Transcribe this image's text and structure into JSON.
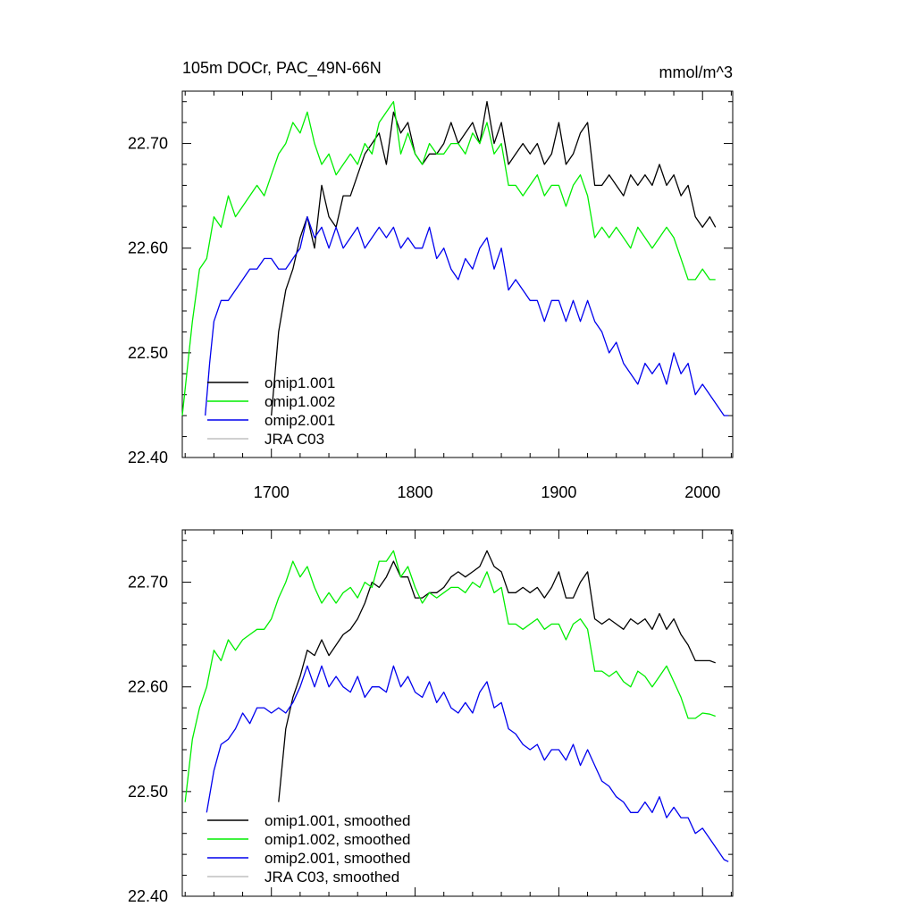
{
  "chart_data": [
    {
      "type": "line",
      "title": "105m DOCr, PAC_49N-66N",
      "units": "mmol/m^3",
      "xlim": [
        1638,
        2021
      ],
      "ylim": [
        22.4,
        22.75
      ],
      "x_ticks": [
        1700,
        1800,
        1900,
        2000
      ],
      "y_ticks": [
        "22.40",
        "22.50",
        "22.60",
        "22.70"
      ],
      "grid": false,
      "legend_position": "bottom-left",
      "series": [
        {
          "name": "omip1.001",
          "color": "#000000",
          "x": [
            1700,
            1705,
            1710,
            1715,
            1720,
            1725,
            1730,
            1735,
            1740,
            1745,
            1750,
            1755,
            1760,
            1765,
            1770,
            1775,
            1780,
            1785,
            1790,
            1795,
            1800,
            1805,
            1810,
            1815,
            1820,
            1825,
            1830,
            1835,
            1840,
            1845,
            1850,
            1855,
            1860,
            1865,
            1870,
            1875,
            1880,
            1885,
            1890,
            1895,
            1900,
            1905,
            1910,
            1915,
            1920,
            1925,
            1930,
            1935,
            1940,
            1945,
            1950,
            1955,
            1960,
            1965,
            1970,
            1975,
            1980,
            1985,
            1990,
            1995,
            2000,
            2005,
            2009
          ],
          "y": [
            22.44,
            22.52,
            22.56,
            22.58,
            22.61,
            22.63,
            22.6,
            22.66,
            22.63,
            22.62,
            22.65,
            22.65,
            22.67,
            22.69,
            22.7,
            22.71,
            22.68,
            22.73,
            22.71,
            22.72,
            22.69,
            22.68,
            22.69,
            22.69,
            22.7,
            22.72,
            22.7,
            22.71,
            22.72,
            22.7,
            22.74,
            22.7,
            22.72,
            22.68,
            22.69,
            22.7,
            22.69,
            22.7,
            22.68,
            22.69,
            22.72,
            22.68,
            22.69,
            22.71,
            22.72,
            22.66,
            22.66,
            22.67,
            22.66,
            22.65,
            22.67,
            22.66,
            22.67,
            22.66,
            22.68,
            22.66,
            22.67,
            22.65,
            22.66,
            22.63,
            22.62,
            22.63,
            22.62
          ]
        },
        {
          "name": "omip1.002",
          "color": "#00ee00",
          "x": [
            1638,
            1645,
            1650,
            1655,
            1660,
            1665,
            1670,
            1675,
            1680,
            1685,
            1690,
            1695,
            1700,
            1705,
            1710,
            1715,
            1720,
            1725,
            1730,
            1735,
            1740,
            1745,
            1750,
            1755,
            1760,
            1765,
            1770,
            1775,
            1780,
            1785,
            1790,
            1795,
            1800,
            1805,
            1810,
            1815,
            1820,
            1825,
            1830,
            1835,
            1840,
            1845,
            1850,
            1855,
            1860,
            1865,
            1870,
            1875,
            1880,
            1885,
            1890,
            1895,
            1900,
            1905,
            1910,
            1915,
            1920,
            1925,
            1930,
            1935,
            1940,
            1945,
            1950,
            1955,
            1960,
            1965,
            1970,
            1975,
            1980,
            1985,
            1990,
            1995,
            2000,
            2005,
            2009
          ],
          "y": [
            22.44,
            22.53,
            22.58,
            22.59,
            22.63,
            22.62,
            22.65,
            22.63,
            22.64,
            22.65,
            22.66,
            22.65,
            22.67,
            22.69,
            22.7,
            22.72,
            22.71,
            22.73,
            22.7,
            22.68,
            22.69,
            22.67,
            22.68,
            22.69,
            22.68,
            22.7,
            22.69,
            22.72,
            22.73,
            22.74,
            22.69,
            22.71,
            22.69,
            22.68,
            22.7,
            22.69,
            22.69,
            22.7,
            22.7,
            22.69,
            22.71,
            22.7,
            22.72,
            22.69,
            22.7,
            22.66,
            22.66,
            22.65,
            22.66,
            22.67,
            22.65,
            22.66,
            22.66,
            22.64,
            22.66,
            22.67,
            22.65,
            22.61,
            22.62,
            22.61,
            22.62,
            22.61,
            22.6,
            22.62,
            22.61,
            22.6,
            22.61,
            22.62,
            22.61,
            22.59,
            22.57,
            22.57,
            22.58,
            22.57,
            22.57
          ]
        },
        {
          "name": "omip2.001",
          "color": "#0000ee",
          "x": [
            1654,
            1657,
            1660,
            1665,
            1670,
            1675,
            1680,
            1685,
            1690,
            1695,
            1700,
            1705,
            1710,
            1715,
            1720,
            1725,
            1730,
            1735,
            1740,
            1745,
            1750,
            1755,
            1760,
            1765,
            1770,
            1775,
            1780,
            1785,
            1790,
            1795,
            1800,
            1805,
            1810,
            1815,
            1820,
            1825,
            1830,
            1835,
            1840,
            1845,
            1850,
            1855,
            1860,
            1865,
            1870,
            1875,
            1880,
            1885,
            1890,
            1895,
            1900,
            1905,
            1910,
            1915,
            1920,
            1925,
            1930,
            1935,
            1940,
            1945,
            1950,
            1955,
            1960,
            1965,
            1970,
            1975,
            1980,
            1985,
            1990,
            1995,
            2000,
            2005,
            2010,
            2015,
            2018
          ],
          "y": [
            22.44,
            22.49,
            22.53,
            22.55,
            22.55,
            22.56,
            22.57,
            22.58,
            22.58,
            22.59,
            22.59,
            22.58,
            22.58,
            22.59,
            22.6,
            22.63,
            22.61,
            22.62,
            22.6,
            22.62,
            22.6,
            22.61,
            22.62,
            22.6,
            22.61,
            22.62,
            22.61,
            22.62,
            22.6,
            22.61,
            22.6,
            22.6,
            22.62,
            22.59,
            22.6,
            22.58,
            22.57,
            22.59,
            22.58,
            22.6,
            22.61,
            22.58,
            22.6,
            22.56,
            22.57,
            22.56,
            22.55,
            22.55,
            22.53,
            22.55,
            22.55,
            22.53,
            22.55,
            22.53,
            22.55,
            22.53,
            22.52,
            22.5,
            22.51,
            22.49,
            22.48,
            22.47,
            22.49,
            22.48,
            22.49,
            22.47,
            22.5,
            22.48,
            22.49,
            22.46,
            22.47,
            22.46,
            22.45,
            22.44,
            22.44
          ]
        },
        {
          "name": "JRA C03",
          "color": "#c0c0c0",
          "x": [],
          "y": []
        }
      ]
    },
    {
      "type": "line",
      "title": "",
      "xlim": [
        1638,
        2021
      ],
      "ylim": [
        22.4,
        22.75
      ],
      "y_ticks": [
        "22.40",
        "22.50",
        "22.60",
        "22.70"
      ],
      "grid": false,
      "legend_position": "bottom-left",
      "series": [
        {
          "name": "omip1.001, smoothed",
          "color": "#000000",
          "x": [
            1705,
            1710,
            1715,
            1720,
            1725,
            1730,
            1735,
            1740,
            1745,
            1750,
            1755,
            1760,
            1765,
            1770,
            1775,
            1780,
            1785,
            1790,
            1795,
            1800,
            1805,
            1810,
            1815,
            1820,
            1825,
            1830,
            1835,
            1840,
            1845,
            1850,
            1855,
            1860,
            1865,
            1870,
            1875,
            1880,
            1885,
            1890,
            1895,
            1900,
            1905,
            1910,
            1915,
            1920,
            1925,
            1930,
            1935,
            1940,
            1945,
            1950,
            1955,
            1960,
            1965,
            1970,
            1975,
            1980,
            1985,
            1990,
            1995,
            2000,
            2005,
            2009
          ],
          "y": [
            22.49,
            22.56,
            22.59,
            22.61,
            22.635,
            22.63,
            22.645,
            22.63,
            22.64,
            22.65,
            22.655,
            22.665,
            22.68,
            22.7,
            22.695,
            22.705,
            22.72,
            22.705,
            22.705,
            22.685,
            22.685,
            22.69,
            22.69,
            22.695,
            22.705,
            22.71,
            22.705,
            22.71,
            22.715,
            22.73,
            22.715,
            22.71,
            22.69,
            22.69,
            22.695,
            22.69,
            22.695,
            22.685,
            22.695,
            22.71,
            22.685,
            22.685,
            22.7,
            22.71,
            22.665,
            22.66,
            22.665,
            22.66,
            22.655,
            22.665,
            22.66,
            22.665,
            22.655,
            22.67,
            22.655,
            22.665,
            22.65,
            22.64,
            22.625,
            22.625,
            22.625,
            22.623
          ]
        },
        {
          "name": "omip1.002, smoothed",
          "color": "#00ee00",
          "x": [
            1640,
            1645,
            1650,
            1655,
            1660,
            1665,
            1670,
            1675,
            1680,
            1685,
            1690,
            1695,
            1700,
            1705,
            1710,
            1715,
            1720,
            1725,
            1730,
            1735,
            1740,
            1745,
            1750,
            1755,
            1760,
            1765,
            1770,
            1775,
            1780,
            1785,
            1790,
            1795,
            1800,
            1805,
            1810,
            1815,
            1820,
            1825,
            1830,
            1835,
            1840,
            1845,
            1850,
            1855,
            1860,
            1865,
            1870,
            1875,
            1880,
            1885,
            1890,
            1895,
            1900,
            1905,
            1910,
            1915,
            1920,
            1925,
            1930,
            1935,
            1940,
            1945,
            1950,
            1955,
            1960,
            1965,
            1970,
            1975,
            1980,
            1985,
            1990,
            1995,
            2000,
            2005,
            2009
          ],
          "y": [
            22.49,
            22.55,
            22.58,
            22.6,
            22.635,
            22.625,
            22.645,
            22.635,
            22.645,
            22.65,
            22.655,
            22.655,
            22.665,
            22.685,
            22.7,
            22.72,
            22.705,
            22.715,
            22.695,
            22.68,
            22.69,
            22.68,
            22.69,
            22.695,
            22.685,
            22.7,
            22.695,
            22.72,
            22.72,
            22.73,
            22.705,
            22.715,
            22.695,
            22.68,
            22.69,
            22.685,
            22.69,
            22.695,
            22.695,
            22.69,
            22.7,
            22.695,
            22.71,
            22.69,
            22.695,
            22.66,
            22.66,
            22.655,
            22.66,
            22.665,
            22.655,
            22.66,
            22.66,
            22.645,
            22.66,
            22.665,
            22.655,
            22.615,
            22.615,
            22.61,
            22.615,
            22.605,
            22.6,
            22.615,
            22.61,
            22.6,
            22.61,
            22.62,
            22.605,
            22.59,
            22.57,
            22.57,
            22.575,
            22.574,
            22.572
          ]
        },
        {
          "name": "omip2.001, smoothed",
          "color": "#0000ee",
          "x": [
            1655,
            1660,
            1665,
            1670,
            1675,
            1680,
            1685,
            1690,
            1695,
            1700,
            1705,
            1710,
            1715,
            1720,
            1725,
            1730,
            1735,
            1740,
            1745,
            1750,
            1755,
            1760,
            1765,
            1770,
            1775,
            1780,
            1785,
            1790,
            1795,
            1800,
            1805,
            1810,
            1815,
            1820,
            1825,
            1830,
            1835,
            1840,
            1845,
            1850,
            1855,
            1860,
            1865,
            1870,
            1875,
            1880,
            1885,
            1890,
            1895,
            1900,
            1905,
            1910,
            1915,
            1920,
            1925,
            1930,
            1935,
            1940,
            1945,
            1950,
            1955,
            1960,
            1965,
            1970,
            1975,
            1980,
            1985,
            1990,
            1995,
            2000,
            2005,
            2010,
            2015,
            2018
          ],
          "y": [
            22.48,
            22.52,
            22.545,
            22.55,
            22.56,
            22.575,
            22.565,
            22.58,
            22.58,
            22.575,
            22.58,
            22.575,
            22.585,
            22.6,
            22.62,
            22.6,
            22.62,
            22.6,
            22.61,
            22.6,
            22.595,
            22.61,
            22.59,
            22.6,
            22.6,
            22.595,
            22.62,
            22.6,
            22.61,
            22.595,
            22.59,
            22.605,
            22.585,
            22.595,
            22.58,
            22.575,
            22.585,
            22.575,
            22.595,
            22.605,
            22.58,
            22.585,
            22.56,
            22.555,
            22.545,
            22.54,
            22.545,
            22.53,
            22.54,
            22.54,
            22.53,
            22.545,
            22.525,
            22.54,
            22.525,
            22.51,
            22.505,
            22.495,
            22.49,
            22.48,
            22.48,
            22.49,
            22.48,
            22.495,
            22.475,
            22.485,
            22.475,
            22.475,
            22.46,
            22.465,
            22.455,
            22.445,
            22.435,
            22.433
          ]
        },
        {
          "name": "JRA C03, smoothed",
          "color": "#c0c0c0",
          "x": [],
          "y": []
        }
      ]
    }
  ]
}
